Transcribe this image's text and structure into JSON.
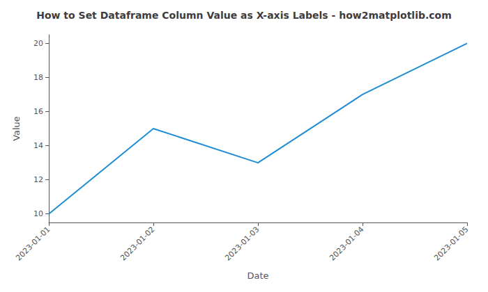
{
  "chart_data": {
    "type": "line",
    "title": "How to Set Dataframe Column Value as X-axis Labels - how2matplotlib.com",
    "xlabel": "Date",
    "ylabel": "Value",
    "categories": [
      "2023-01-01",
      "2023-01-02",
      "2023-01-03",
      "2023-01-04",
      "2023-01-05"
    ],
    "values": [
      10,
      15,
      13,
      17,
      20
    ],
    "color": "#1f8dd6",
    "ylim": [
      9.5,
      20.5
    ],
    "yticks": [
      10,
      12,
      14,
      16,
      18,
      20
    ],
    "grid": false
  }
}
